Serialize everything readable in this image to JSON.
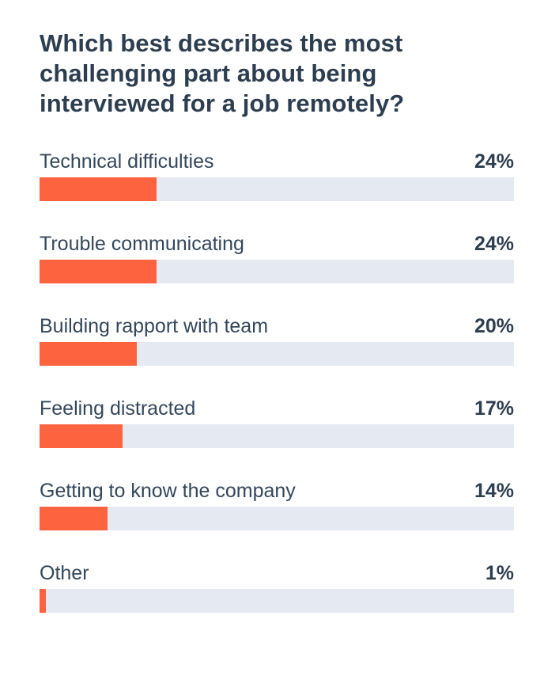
{
  "colors": {
    "bar": "#ff5c35",
    "track": "#e5e9f2",
    "title": "#2d3e50",
    "label": "#33475b"
  },
  "chart_data": {
    "type": "bar",
    "orientation": "horizontal",
    "title": "Which best describes the most challenging part about being interviewed for a job remotely?",
    "categories": [
      "Technical difficulties",
      "Trouble communicating",
      "Building rapport with team",
      "Feeling distracted",
      "Getting to know the company",
      "Other"
    ],
    "values": [
      24,
      24,
      20,
      17,
      14,
      1
    ],
    "value_labels": [
      "24%",
      "24%",
      "20%",
      "17%",
      "14%",
      "1%"
    ],
    "unit": "%",
    "xlim": [
      0,
      100
    ],
    "grid": false,
    "legend": "none"
  }
}
